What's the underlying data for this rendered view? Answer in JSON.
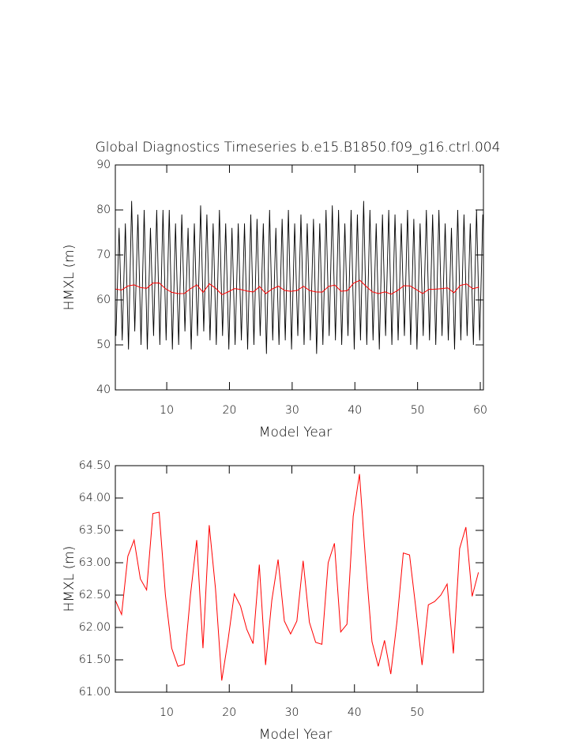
{
  "chart_data": [
    {
      "type": "line",
      "title": "Global Diagnostics Timeseries b.e15.B1850.f09_g16.ctrl.004",
      "x_label": "Model Year",
      "y_label": "HMXL (m)",
      "xlim": [
        1.8,
        60.5
      ],
      "xticks": [
        10,
        20,
        30,
        40,
        50,
        60
      ],
      "ylim": [
        40,
        90
      ],
      "yticks": [
        40,
        50,
        60,
        70,
        80,
        90
      ],
      "series": [
        {
          "color": "#000000",
          "x": [
            1.9,
            2.4,
            2.9,
            3.4,
            3.9,
            4.4,
            4.9,
            5.4,
            5.9,
            6.4,
            6.9,
            7.4,
            7.9,
            8.4,
            8.9,
            9.4,
            9.9,
            10.4,
            10.9,
            11.4,
            11.9,
            12.4,
            12.9,
            13.4,
            13.9,
            14.4,
            14.9,
            15.4,
            15.9,
            16.4,
            16.9,
            17.4,
            17.9,
            18.4,
            18.9,
            19.4,
            19.9,
            20.4,
            20.9,
            21.4,
            21.9,
            22.4,
            22.9,
            23.4,
            23.9,
            24.4,
            24.9,
            25.4,
            25.9,
            26.4,
            26.9,
            27.4,
            27.9,
            28.4,
            28.9,
            29.4,
            29.9,
            30.4,
            30.9,
            31.4,
            31.9,
            32.4,
            32.9,
            33.4,
            33.9,
            34.4,
            34.9,
            35.4,
            35.9,
            36.4,
            36.9,
            37.4,
            37.9,
            38.4,
            38.9,
            39.4,
            39.9,
            40.4,
            40.9,
            41.4,
            41.9,
            42.4,
            42.9,
            43.4,
            43.9,
            44.4,
            44.9,
            45.4,
            45.9,
            46.4,
            46.9,
            47.4,
            47.9,
            48.4,
            48.9,
            49.4,
            49.9,
            50.4,
            50.9,
            51.4,
            51.9,
            52.4,
            52.9,
            53.4,
            53.9,
            54.4,
            54.9,
            55.4,
            55.9,
            56.4,
            56.9,
            57.4,
            57.9,
            58.4,
            58.9,
            59.4,
            59.9,
            60.4
          ],
          "values": [
            52,
            76,
            51,
            77,
            49,
            82,
            53,
            79,
            50,
            80,
            49,
            76,
            52,
            80,
            50,
            80,
            51,
            80,
            49,
            77,
            50,
            79,
            53,
            76,
            49,
            77,
            52,
            81,
            53,
            79,
            51,
            77,
            50,
            80,
            52,
            77,
            49,
            76,
            50,
            77,
            51,
            77,
            49,
            79,
            50,
            78,
            52,
            77,
            48,
            80,
            51,
            76,
            50,
            78,
            51,
            80,
            49,
            77,
            52,
            79,
            50,
            77,
            51,
            78,
            48,
            77,
            50,
            80,
            52,
            81,
            51,
            80,
            50,
            77,
            52,
            80,
            49,
            79,
            51,
            82,
            50,
            80,
            51,
            77,
            49,
            79,
            52,
            80,
            50,
            79,
            51,
            77,
            52,
            80,
            50,
            78,
            49,
            77,
            52,
            80,
            51,
            79,
            50,
            80,
            52,
            77,
            51,
            76,
            49,
            80,
            51,
            79,
            52,
            77,
            50,
            80,
            51,
            79
          ]
        },
        {
          "color": "#ff0000",
          "x": [
            1.8,
            2.8,
            3.8,
            4.8,
            5.8,
            6.8,
            7.8,
            8.8,
            9.8,
            10.8,
            11.8,
            12.8,
            13.8,
            14.8,
            15.8,
            16.8,
            17.8,
            18.8,
            19.8,
            20.8,
            21.8,
            22.8,
            23.8,
            24.8,
            25.8,
            26.8,
            27.8,
            28.8,
            29.8,
            30.8,
            31.8,
            32.8,
            33.8,
            34.8,
            35.8,
            36.8,
            37.8,
            38.8,
            39.8,
            40.8,
            41.8,
            42.8,
            43.8,
            44.8,
            45.8,
            46.8,
            47.8,
            48.8,
            49.8,
            50.8,
            51.8,
            52.8,
            53.8,
            54.8,
            55.8,
            56.8,
            57.8,
            58.8,
            59.8
          ],
          "values": [
            62.42,
            62.2,
            63.1,
            63.35,
            62.75,
            62.58,
            63.76,
            63.78,
            62.5,
            61.68,
            61.4,
            61.43,
            62.5,
            63.35,
            61.68,
            63.58,
            62.6,
            61.18,
            61.8,
            62.52,
            62.33,
            61.97,
            61.75,
            62.97,
            61.42,
            62.42,
            63.05,
            62.1,
            61.9,
            62.1,
            63.03,
            62.08,
            61.77,
            61.74,
            63.0,
            63.3,
            61.93,
            62.05,
            63.72,
            64.37,
            63.0,
            61.78,
            61.4,
            61.8,
            61.28,
            62.1,
            63.15,
            63.12,
            62.3,
            61.42,
            62.35,
            62.4,
            62.5,
            62.67,
            61.6,
            63.22,
            63.55,
            62.48,
            62.85
          ]
        }
      ]
    },
    {
      "type": "line",
      "x_label": "Model Year",
      "y_label": "HMXL (m)",
      "xlim": [
        1.8,
        60.6
      ],
      "xticks": [
        10,
        20,
        30,
        40,
        50
      ],
      "ylim": [
        61,
        64.5
      ],
      "yticks": [
        {
          "value": 61,
          "label": "61.00"
        },
        {
          "value": 61.5,
          "label": "61.50"
        },
        {
          "value": 62,
          "label": "62.00"
        },
        {
          "value": 62.5,
          "label": "62.50"
        },
        {
          "value": 63,
          "label": "63.00"
        },
        {
          "value": 63.5,
          "label": "63.50"
        },
        {
          "value": 64,
          "label": "64.00"
        },
        {
          "value": 64.5,
          "label": "64.50"
        }
      ],
      "series": [
        {
          "color": "#ff0000",
          "x": [
            1.8,
            2.8,
            3.8,
            4.8,
            5.8,
            6.8,
            7.8,
            8.8,
            9.8,
            10.8,
            11.8,
            12.8,
            13.8,
            14.8,
            15.8,
            16.8,
            17.8,
            18.8,
            19.8,
            20.8,
            21.8,
            22.8,
            23.8,
            24.8,
            25.8,
            26.8,
            27.8,
            28.8,
            29.8,
            30.8,
            31.8,
            32.8,
            33.8,
            34.8,
            35.8,
            36.8,
            37.8,
            38.8,
            39.8,
            40.8,
            41.8,
            42.8,
            43.8,
            44.8,
            45.8,
            46.8,
            47.8,
            48.8,
            49.8,
            50.8,
            51.8,
            52.8,
            53.8,
            54.8,
            55.8,
            56.8,
            57.8,
            58.8,
            59.8
          ],
          "values": [
            62.42,
            62.2,
            63.1,
            63.35,
            62.75,
            62.58,
            63.76,
            63.78,
            62.5,
            61.68,
            61.4,
            61.43,
            62.5,
            63.35,
            61.68,
            63.58,
            62.6,
            61.18,
            61.8,
            62.52,
            62.33,
            61.97,
            61.75,
            62.97,
            61.42,
            62.42,
            63.05,
            62.1,
            61.9,
            62.1,
            63.03,
            62.08,
            61.77,
            61.74,
            63.0,
            63.3,
            61.93,
            62.05,
            63.72,
            64.37,
            63.0,
            61.78,
            61.4,
            61.8,
            61.28,
            62.1,
            63.15,
            63.12,
            62.3,
            61.42,
            62.35,
            62.4,
            62.5,
            62.67,
            61.6,
            63.22,
            63.55,
            62.48,
            62.85
          ]
        }
      ]
    }
  ]
}
